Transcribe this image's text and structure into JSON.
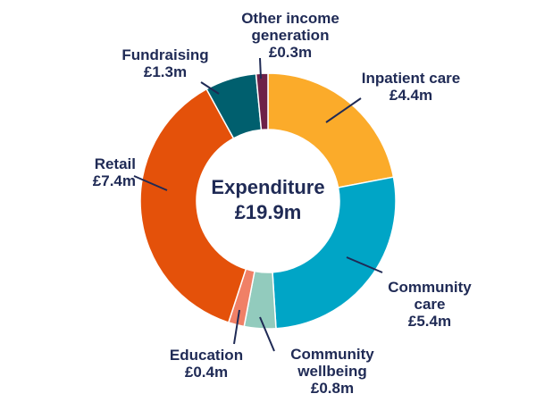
{
  "chart_data": {
    "type": "pie",
    "title": "Expenditure",
    "total": "£19.9m",
    "unit": "£m",
    "categories": [
      "Inpatient care",
      "Community care",
      "Community wellbeing",
      "Education",
      "Retail",
      "Fundraising",
      "Other income generation"
    ],
    "values": [
      4.4,
      5.4,
      0.8,
      0.4,
      7.4,
      1.3,
      0.3
    ],
    "colors": [
      "#fbab2a",
      "#00a5c6",
      "#92cbbd",
      "#f08066",
      "#e4510a",
      "#005f6e",
      "#6d2148"
    ],
    "labels": [
      {
        "name": "Inpatient care",
        "value": "£4.4m"
      },
      {
        "name": "Community care",
        "value": "£5.4m"
      },
      {
        "name": "Community wellbeing",
        "value": "£0.8m"
      },
      {
        "name": "Education",
        "value": "£0.4m"
      },
      {
        "name": "Retail",
        "value": "£7.4m"
      },
      {
        "name": "Fundraising",
        "value": "£1.3m"
      },
      {
        "name": "Other income generation",
        "value": "£0.3m"
      }
    ]
  }
}
